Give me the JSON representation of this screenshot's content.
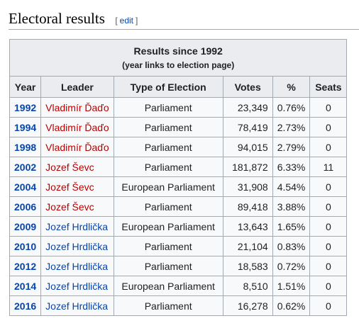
{
  "section": {
    "title": "Electoral results",
    "edit_open": "[",
    "edit_label": "edit",
    "edit_close": "]"
  },
  "table": {
    "caption_title": "Results since 1992",
    "caption_subtitle": "(year links to election page)",
    "headers": {
      "year": "Year",
      "leader": "Leader",
      "type": "Type of Election",
      "votes": "Votes",
      "pct": "%",
      "seats": "Seats"
    },
    "rows": [
      {
        "year": "1992",
        "leader": "Vladimír Ďaďo",
        "type": "Parliament",
        "votes": "23,349",
        "pct": "0.76%",
        "seats": "0"
      },
      {
        "year": "1994",
        "leader": "Vladimír Ďaďo",
        "type": "Parliament",
        "votes": "78,419",
        "pct": "2.73%",
        "seats": "0"
      },
      {
        "year": "1998",
        "leader": "Vladimír Ďaďo",
        "type": "Parliament",
        "votes": "94,015",
        "pct": "2.79%",
        "seats": "0"
      },
      {
        "year": "2002",
        "leader": "Jozef Ševc",
        "type": "Parliament",
        "votes": "181,872",
        "pct": "6.33%",
        "seats": "11"
      },
      {
        "year": "2004",
        "leader": "Jozef Ševc",
        "type": "European Parliament",
        "votes": "31,908",
        "pct": "4.54%",
        "seats": "0"
      },
      {
        "year": "2006",
        "leader": "Jozef Ševc",
        "type": "Parliament",
        "votes": "89,418",
        "pct": "3.88%",
        "seats": "0"
      },
      {
        "year": "2009",
        "leader": "Jozef Hrdlička",
        "type": "European Parliament",
        "votes": "13,643",
        "pct": "1.65%",
        "seats": "0"
      },
      {
        "year": "2010",
        "leader": "Jozef Hrdlička",
        "type": "Parliament",
        "votes": "21,104",
        "pct": "0.83%",
        "seats": "0"
      },
      {
        "year": "2012",
        "leader": "Jozef Hrdlička",
        "type": "Parliament",
        "votes": "18,583",
        "pct": "0.72%",
        "seats": "0"
      },
      {
        "year": "2014",
        "leader": "Jozef Hrdlička",
        "type": "European Parliament",
        "votes": "8,510",
        "pct": "1.51%",
        "seats": "0"
      },
      {
        "year": "2016",
        "leader": "Jozef Hrdlička",
        "type": "Parliament",
        "votes": "16,278",
        "pct": "0.62%",
        "seats": "0"
      }
    ]
  },
  "colors": {
    "link_blue": "#0645ad",
    "link_red": "#ba0000",
    "header_bg": "#eaecf0",
    "cell_bg": "#f8f9fa",
    "border": "#a2a9b1"
  },
  "link_styles": {
    "Vladimír Ďaďo": "redlink",
    "Jozef Ševc": "redlink",
    "Jozef Hrdlička": "bluelink"
  }
}
